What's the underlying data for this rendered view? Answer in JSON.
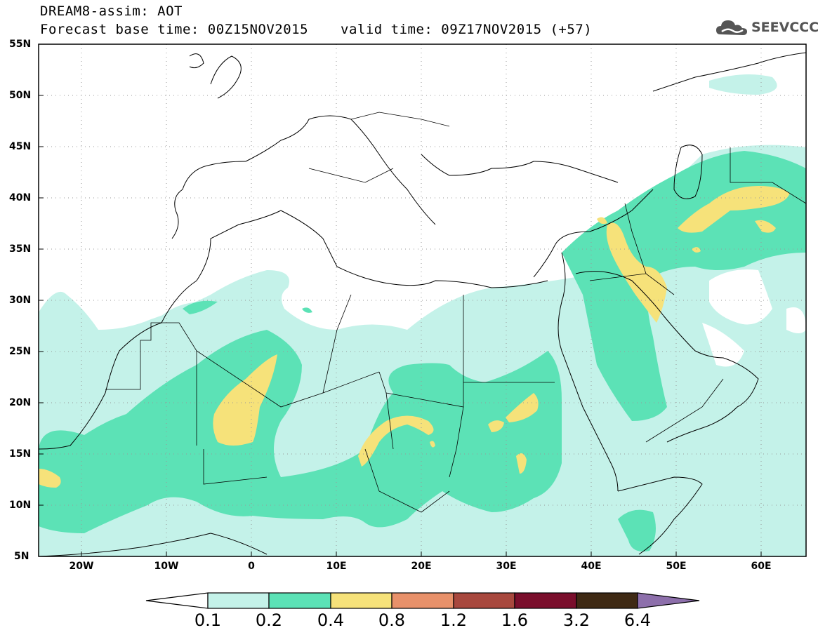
{
  "header": {
    "title_line1": "DREAM8-assim: AOT",
    "title_line2": "Forecast base time: 00Z15NOV2015",
    "valid_time": "valid time: 09Z17NOV2015 (+57)",
    "logo_text": "SEEVCCC"
  },
  "map": {
    "lat_labels": [
      "55N",
      "50N",
      "45N",
      "40N",
      "35N",
      "30N",
      "25N",
      "20N",
      "15N",
      "10N",
      "5N"
    ],
    "lon_labels": [
      "20W",
      "10W",
      "0",
      "10E",
      "20E",
      "30E",
      "40E",
      "50E",
      "60E"
    ],
    "extent": {
      "lon_min": -25,
      "lon_max": 65,
      "lat_min": 5,
      "lat_max": 55
    }
  },
  "colorbar": {
    "labels": [
      "0.1",
      "0.2",
      "0.4",
      "0.8",
      "1.2",
      "1.6",
      "3.2",
      "6.4"
    ],
    "colors": [
      "#ffffff",
      "#c4f2e9",
      "#5ce2b6",
      "#f6e27a",
      "#e8916a",
      "#a8483e",
      "#7a0e2c",
      "#3f2a14",
      "#8d6fab"
    ]
  },
  "colors": {
    "level1": "#c4f2e9",
    "level2": "#5ce2b6",
    "level3": "#f6e27a",
    "coast": "#000000"
  }
}
